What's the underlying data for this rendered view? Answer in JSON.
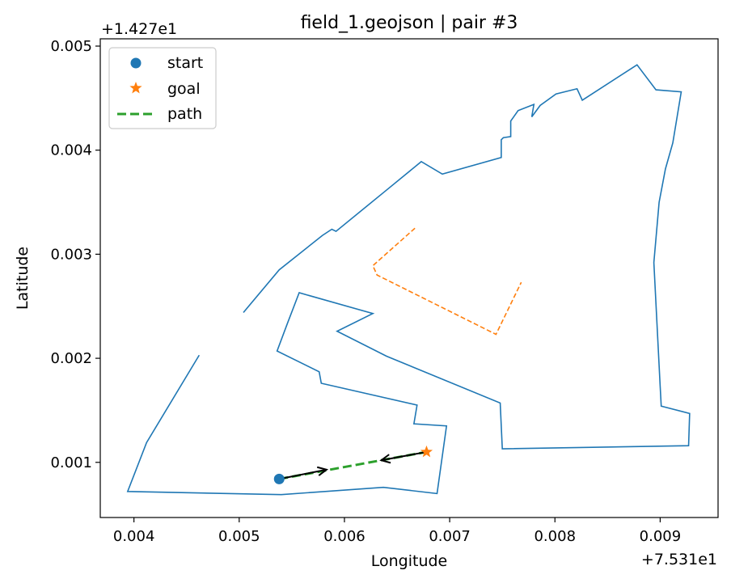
{
  "chart_data": {
    "type": "line",
    "title": "field_1.geojson | pair #3",
    "xlabel": "Longitude",
    "ylabel": "Latitude",
    "x_offset_label": "+7.531e1",
    "y_offset_label": "+1.427e1",
    "xlim": [
      0.00368,
      0.00955
    ],
    "ylim": [
      0.00047,
      0.00507
    ],
    "xticks": [
      0.004,
      0.005,
      0.006,
      0.007,
      0.008,
      0.009
    ],
    "xtick_labels": [
      "0.004",
      "0.005",
      "0.006",
      "0.007",
      "0.008",
      "0.009"
    ],
    "yticks": [
      0.001,
      0.002,
      0.003,
      0.004,
      0.005
    ],
    "ytick_labels": [
      "0.001",
      "0.002",
      "0.003",
      "0.004",
      "0.005"
    ],
    "grid": false,
    "legend_position": "top-left",
    "colors": {
      "boundary": "#1f77b4",
      "start": "#1f77b4",
      "goal": "#ff7f0e",
      "obstacle": "#ff7f0e",
      "path": "#2ca02c",
      "arrow": "#000000"
    },
    "legend": [
      {
        "label": "start",
        "marker": "circle",
        "color": "#1f77b4"
      },
      {
        "label": "goal",
        "marker": "star",
        "color": "#ff7f0e"
      },
      {
        "label": "path",
        "marker": "dashed-line",
        "color": "#2ca02c"
      }
    ],
    "boundary": [
      [
        0.00462,
        0.00203
      ],
      [
        0.00412,
        0.00119
      ],
      [
        0.00394,
        0.00072
      ],
      [
        0.0054,
        0.00069
      ],
      [
        0.00637,
        0.00076
      ],
      [
        0.00688,
        0.0007
      ],
      [
        0.00697,
        0.00135
      ],
      [
        0.00666,
        0.00137
      ],
      [
        0.00669,
        0.00155
      ],
      [
        0.00578,
        0.00176
      ],
      [
        0.00576,
        0.00187
      ],
      [
        0.00536,
        0.00207
      ],
      [
        0.00546,
        0.00234
      ],
      [
        0.00557,
        0.00263
      ],
      [
        0.00627,
        0.00243
      ],
      [
        0.00593,
        0.00226
      ],
      [
        0.0064,
        0.00202
      ],
      [
        0.00748,
        0.00157
      ],
      [
        0.0075,
        0.00113
      ],
      [
        0.00927,
        0.00116
      ],
      [
        0.00928,
        0.00147
      ],
      [
        0.00901,
        0.00154
      ],
      [
        0.009,
        0.00173
      ],
      [
        0.00894,
        0.00292
      ],
      [
        0.00899,
        0.0035
      ],
      [
        0.00905,
        0.00382
      ],
      [
        0.00912,
        0.00407
      ],
      [
        0.0092,
        0.00456
      ],
      [
        0.00896,
        0.00458
      ],
      [
        0.00878,
        0.00482
      ],
      [
        0.00826,
        0.00448
      ],
      [
        0.00821,
        0.00459
      ],
      [
        0.00801,
        0.00454
      ],
      [
        0.00786,
        0.00443
      ],
      [
        0.00778,
        0.00432
      ],
      [
        0.0078,
        0.00444
      ],
      [
        0.00765,
        0.00438
      ],
      [
        0.00758,
        0.00428
      ],
      [
        0.00758,
        0.00413
      ],
      [
        0.00751,
        0.00412
      ],
      [
        0.00749,
        0.0041
      ],
      [
        0.00749,
        0.00393
      ],
      [
        0.00693,
        0.00377
      ],
      [
        0.00673,
        0.00389
      ],
      [
        0.00638,
        0.0036
      ],
      [
        0.00592,
        0.00322
      ],
      [
        0.00588,
        0.00324
      ],
      [
        0.00579,
        0.00318
      ],
      [
        0.00538,
        0.00285
      ],
      [
        0.00504,
        0.00244
      ]
    ],
    "obstacle": [
      [
        0.00667,
        0.00325
      ],
      [
        0.00627,
        0.00289
      ],
      [
        0.00631,
        0.0028
      ],
      [
        0.00744,
        0.00223
      ],
      [
        0.00768,
        0.00273
      ]
    ],
    "start": [
      0.00538,
      0.00084
    ],
    "goal": [
      0.00678,
      0.0011
    ],
    "path": [
      [
        0.00538,
        0.00084
      ],
      [
        0.00678,
        0.0011
      ]
    ],
    "arrows": [
      {
        "from": [
          0.00538,
          0.00084
        ],
        "to": [
          0.00583,
          0.00093
        ]
      },
      {
        "from": [
          0.00678,
          0.0011
        ],
        "to": [
          0.00635,
          0.00102
        ]
      }
    ]
  }
}
